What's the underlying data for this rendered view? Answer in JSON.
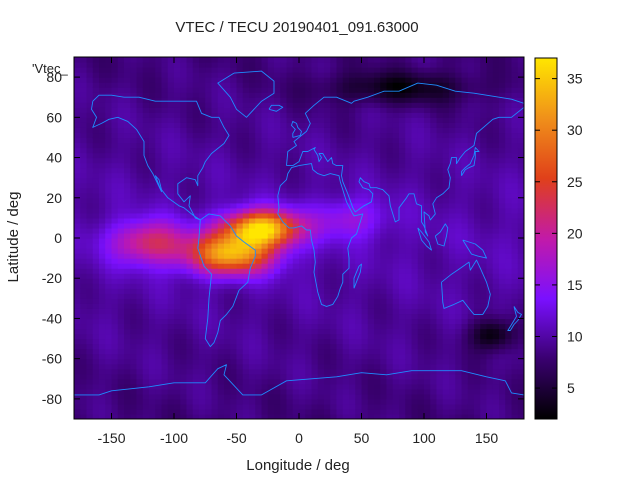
{
  "chart_data": {
    "type": "heatmap",
    "title": "VTEC / TECU 20190401_091.63000",
    "xlabel": "Longitude / deg",
    "ylabel": "Latitude / deg",
    "series_label": "'Vtec_",
    "xlim": [
      -180,
      180
    ],
    "ylim": [
      -90,
      90
    ],
    "x_ticks": [
      -150,
      -100,
      -50,
      0,
      50,
      100,
      150
    ],
    "y_ticks": [
      -80,
      -60,
      -40,
      -20,
      0,
      20,
      40,
      60,
      80
    ],
    "colorbar": {
      "range": [
        2,
        37
      ],
      "ticks": [
        5,
        10,
        15,
        20,
        25,
        30,
        35
      ],
      "palette": [
        "#000000",
        "#3a0070",
        "#7a10ff",
        "#c21aa8",
        "#e0401a",
        "#f0901a",
        "#ffe600"
      ]
    },
    "grid": false,
    "colors": {
      "coastline": "#1e8cff",
      "frame": "#000000"
    },
    "grid_resolution": {
      "lon_step_deg": 5,
      "lat_step_deg": 2.5
    },
    "field_features": [
      {
        "kind": "enhancement",
        "lon": -30,
        "lat": 5,
        "peak": 36,
        "lon_width": 30,
        "lat_width": 9
      },
      {
        "kind": "enhancement",
        "lon": -55,
        "lat": -8,
        "peak": 32,
        "lon_width": 35,
        "lat_width": 10
      },
      {
        "kind": "enhancement",
        "lon": -120,
        "lat": -2,
        "peak": 22,
        "lon_width": 30,
        "lat_width": 11
      },
      {
        "kind": "enhancement",
        "lon": 40,
        "lat": 10,
        "peak": 16,
        "lon_width": 30,
        "lat_width": 10
      },
      {
        "kind": "depletion",
        "lon": 155,
        "lat": -48,
        "peak": 2,
        "lon_width": 18,
        "lat_width": 8
      },
      {
        "kind": "depletion",
        "lon": 80,
        "lat": 75,
        "peak": 3,
        "lon_width": 60,
        "lat_width": 8
      }
    ]
  }
}
